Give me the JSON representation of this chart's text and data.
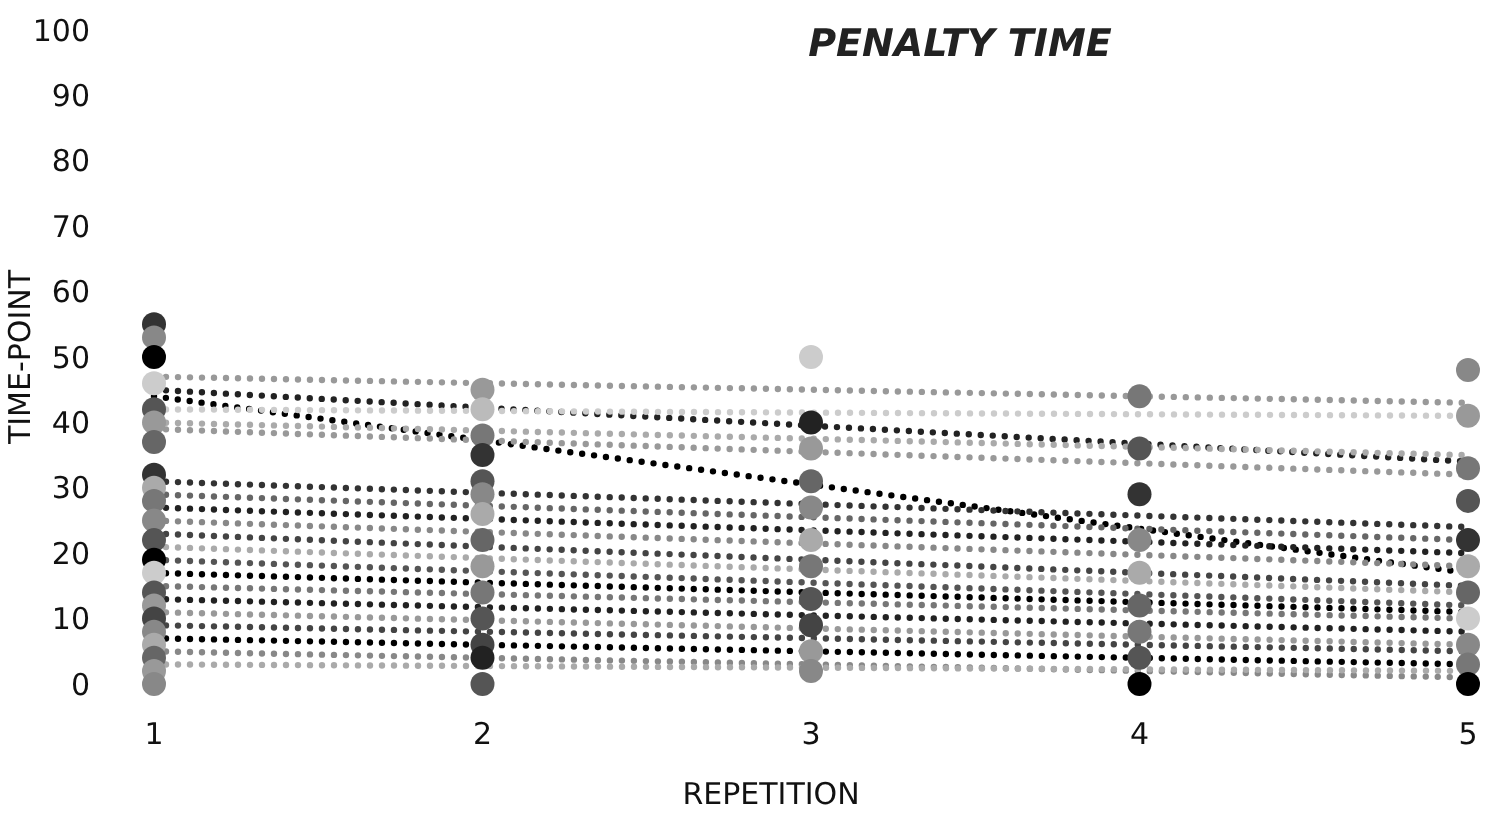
{
  "chart_data": {
    "type": "scatter",
    "title": "PENALTY TIME",
    "xlabel": "REPETITION",
    "ylabel": "TIME-POINT",
    "xlim": [
      1,
      5
    ],
    "xticks": [
      1,
      2,
      3,
      4,
      5
    ],
    "ylim": [
      0,
      100
    ],
    "yticks": [
      0,
      10,
      20,
      30,
      40,
      50,
      60,
      70,
      80,
      90,
      100
    ],
    "grid": false,
    "line_style": "dotted",
    "series": [
      {
        "marker": "circle",
        "x": [
          1,
          1,
          1,
          1,
          1,
          1,
          1,
          1,
          1,
          1,
          1,
          1,
          1,
          1,
          1,
          1,
          1,
          1,
          1,
          1,
          1,
          1,
          2,
          2,
          2,
          2,
          2,
          2,
          2,
          2,
          2,
          2,
          2,
          2,
          2,
          2,
          3,
          3,
          3,
          3,
          3,
          3,
          3,
          3,
          3,
          3,
          3,
          4,
          4,
          4,
          4,
          4,
          4,
          4,
          4,
          4,
          5,
          5,
          5,
          5,
          5,
          5,
          5,
          5,
          5,
          5,
          5
        ],
        "values": [
          55,
          53,
          50,
          46,
          42,
          40,
          37,
          32,
          30,
          28,
          25,
          22,
          19,
          17,
          14,
          12,
          10,
          8,
          6,
          4,
          2,
          0,
          45,
          42,
          38,
          35,
          31,
          29,
          26,
          22,
          18,
          14,
          10,
          6,
          4,
          0,
          50,
          40,
          36,
          31,
          27,
          22,
          18,
          13,
          9,
          5,
          2,
          44,
          36,
          29,
          22,
          17,
          12,
          8,
          4,
          0,
          48,
          41,
          33,
          28,
          22,
          18,
          14,
          10,
          6,
          3,
          0
        ],
        "colors": [
          "#333333",
          "#888888",
          "#000000",
          "#cccccc",
          "#555555",
          "#999999",
          "#666666",
          "#333333",
          "#aaaaaa",
          "#777777",
          "#888888",
          "#555555",
          "#000000",
          "#cccccc",
          "#555555",
          "#999999",
          "#444444",
          "#888888",
          "#aaaaaa",
          "#666666",
          "#999999",
          "#888888",
          "#999999",
          "#bbbbbb",
          "#777777",
          "#333333",
          "#555555",
          "#888888",
          "#aaaaaa",
          "#666666",
          "#999999",
          "#777777",
          "#555555",
          "#444444",
          "#222222",
          "#555555",
          "#cccccc",
          "#222222",
          "#999999",
          "#666666",
          "#888888",
          "#aaaaaa",
          "#777777",
          "#555555",
          "#444444",
          "#999999",
          "#888888",
          "#777777",
          "#555555",
          "#333333",
          "#888888",
          "#aaaaaa",
          "#666666",
          "#777777",
          "#555555",
          "#000000",
          "#888888",
          "#999999",
          "#777777",
          "#555555",
          "#333333",
          "#aaaaaa",
          "#666666",
          "#cccccc",
          "#888888",
          "#777777",
          "#000000"
        ]
      },
      {
        "type": "line",
        "color": "#999999",
        "x": [
          1,
          5
        ],
        "values": [
          47,
          43
        ]
      },
      {
        "type": "line",
        "color": "#222222",
        "x": [
          1,
          5
        ],
        "values": [
          45,
          34
        ]
      },
      {
        "type": "line",
        "color": "#000000",
        "x": [
          1,
          5
        ],
        "values": [
          44,
          17
        ]
      },
      {
        "type": "line",
        "color": "#cccccc",
        "x": [
          1,
          5
        ],
        "values": [
          42,
          41
        ]
      },
      {
        "type": "line",
        "color": "#aaaaaa",
        "x": [
          1,
          5
        ],
        "values": [
          40,
          35
        ]
      },
      {
        "type": "line",
        "color": "#999999",
        "x": [
          1,
          5
        ],
        "values": [
          39,
          32
        ]
      },
      {
        "type": "line",
        "color": "#333333",
        "x": [
          1,
          5
        ],
        "values": [
          31,
          24
        ]
      },
      {
        "type": "line",
        "color": "#666666",
        "x": [
          1,
          5
        ],
        "values": [
          29,
          22
        ]
      },
      {
        "type": "line",
        "color": "#222222",
        "x": [
          1,
          5
        ],
        "values": [
          27,
          20
        ]
      },
      {
        "type": "line",
        "color": "#888888",
        "x": [
          1,
          5
        ],
        "values": [
          25,
          18
        ]
      },
      {
        "type": "line",
        "color": "#444444",
        "x": [
          1,
          5
        ],
        "values": [
          23,
          15
        ]
      },
      {
        "type": "line",
        "color": "#aaaaaa",
        "x": [
          1,
          5
        ],
        "values": [
          21,
          14
        ]
      },
      {
        "type": "line",
        "color": "#555555",
        "x": [
          1,
          5
        ],
        "values": [
          19,
          12
        ]
      },
      {
        "type": "line",
        "color": "#000000",
        "x": [
          1,
          5
        ],
        "values": [
          17,
          11
        ]
      },
      {
        "type": "line",
        "color": "#777777",
        "x": [
          1,
          5
        ],
        "values": [
          15,
          10
        ]
      },
      {
        "type": "line",
        "color": "#222222",
        "x": [
          1,
          5
        ],
        "values": [
          13,
          8
        ]
      },
      {
        "type": "line",
        "color": "#999999",
        "x": [
          1,
          5
        ],
        "values": [
          11,
          6
        ]
      },
      {
        "type": "line",
        "color": "#444444",
        "x": [
          1,
          5
        ],
        "values": [
          9,
          5
        ]
      },
      {
        "type": "line",
        "color": "#000000",
        "x": [
          1,
          5
        ],
        "values": [
          7,
          3
        ]
      },
      {
        "type": "line",
        "color": "#888888",
        "x": [
          1,
          5
        ],
        "values": [
          5,
          1
        ]
      },
      {
        "type": "line",
        "color": "#aaaaaa",
        "x": [
          1,
          5
        ],
        "values": [
          3,
          2
        ]
      }
    ]
  }
}
